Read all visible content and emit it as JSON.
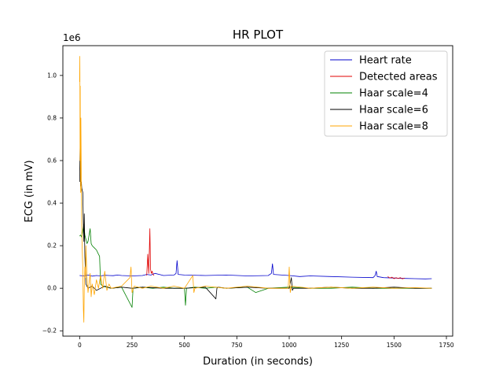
{
  "chart_data": {
    "type": "line",
    "title": "HR PLOT",
    "xlabel": "Duration (in seconds)",
    "ylabel": "ECG (in mV)",
    "y_offset_label": "1e6",
    "xlim": [
      -80,
      1780
    ],
    "ylim": [
      -0.225,
      1.14
    ],
    "x_ticks": [
      0,
      250,
      500,
      750,
      1000,
      1250,
      1500,
      1750
    ],
    "x_tick_labels": [
      "0",
      "250",
      "500",
      "750",
      "1000",
      "1250",
      "1500",
      "1750"
    ],
    "y_ticks": [
      -0.2,
      0,
      0.2,
      0.4,
      0.6,
      0.8,
      1.0
    ],
    "y_tick_labels": [
      "−0.2",
      "0.0",
      "0.2",
      "0.4",
      "0.6",
      "0.8",
      "1.0"
    ],
    "grid": false,
    "legend_position": "top-right",
    "series": [
      {
        "name": "Heart rate",
        "color": "#0000cc",
        "x": [
          0,
          20,
          40,
          60,
          80,
          100,
          120,
          140,
          160,
          180,
          200,
          250,
          300,
          320,
          340,
          360,
          380,
          400,
          450,
          460,
          465,
          470,
          500,
          600,
          700,
          800,
          900,
          915,
          920,
          925,
          1000,
          1050,
          1100,
          1200,
          1300,
          1400,
          1410,
          1415,
          1420,
          1450,
          1500,
          1550,
          1600,
          1650,
          1680
        ],
        "y": [
          0.06,
          0.058,
          0.062,
          0.057,
          0.06,
          0.058,
          0.061,
          0.06,
          0.059,
          0.062,
          0.06,
          0.058,
          0.06,
          0.065,
          0.062,
          0.07,
          0.065,
          0.06,
          0.062,
          0.07,
          0.13,
          0.065,
          0.062,
          0.06,
          0.062,
          0.058,
          0.06,
          0.07,
          0.115,
          0.065,
          0.06,
          0.055,
          0.058,
          0.055,
          0.052,
          0.05,
          0.06,
          0.08,
          0.055,
          0.05,
          0.048,
          0.046,
          0.045,
          0.044,
          0.045
        ]
      },
      {
        "name": "Detected areas",
        "color": "#e00000",
        "x": [
          320,
          325,
          330,
          335,
          338,
          342,
          346,
          350,
          355,
          1470,
          1480,
          1490,
          1500,
          1510,
          1520,
          1530,
          1540,
          1550
        ],
        "y": [
          0.06,
          0.16,
          0.07,
          0.28,
          0.09,
          0.07,
          0.08,
          0.065,
          0.06,
          0.055,
          0.048,
          0.052,
          0.045,
          0.05,
          0.046,
          0.05,
          0.044,
          0.048
        ],
        "segments": [
          [
            0,
            9
          ],
          [
            9,
            18
          ]
        ]
      },
      {
        "name": "Haar scale=4",
        "color": "#008000",
        "x": [
          0,
          5,
          10,
          15,
          20,
          25,
          30,
          35,
          40,
          50,
          55,
          60,
          70,
          80,
          90,
          95,
          100,
          110,
          150,
          200,
          250,
          255,
          300,
          350,
          400,
          450,
          500,
          505,
          510,
          550,
          600,
          650,
          700,
          800,
          840,
          900,
          1000,
          1100,
          1200,
          1300,
          1400,
          1500,
          1600,
          1680
        ],
        "y": [
          0.245,
          0.25,
          0.24,
          0.27,
          0.3,
          0.25,
          0.23,
          0.21,
          0.22,
          0.28,
          0.21,
          0.2,
          0.19,
          0.18,
          0.16,
          0.15,
          0.02,
          0.01,
          0.0,
          0.005,
          -0.09,
          0.0,
          0.005,
          0.0,
          0.005,
          0.0,
          0.0,
          -0.08,
          0.0,
          0.005,
          0.0,
          0.005,
          0.0,
          0.005,
          -0.02,
          0.0,
          0.005,
          0.0,
          0.0,
          0.005,
          0.0,
          0.0,
          0.0,
          0.0
        ]
      },
      {
        "name": "Haar scale=6",
        "color": "#000000",
        "x": [
          0,
          2,
          5,
          8,
          10,
          15,
          18,
          20,
          22,
          25,
          30,
          40,
          60,
          80,
          100,
          120,
          150,
          200,
          250,
          300,
          400,
          500,
          600,
          650,
          655,
          660,
          700,
          800,
          900,
          1000,
          1010,
          1015,
          1020,
          1100,
          1200,
          1300,
          1400,
          1500,
          1600,
          1680
        ],
        "y": [
          0.5,
          0.66,
          0.48,
          0.5,
          0.47,
          0.45,
          0.3,
          0.22,
          0.35,
          0.15,
          0.02,
          0.0,
          0.01,
          -0.01,
          0.0,
          0.01,
          0.0,
          0.005,
          0.0,
          0.005,
          0.0,
          0.0,
          0.005,
          -0.05,
          0.0,
          0.005,
          0.0,
          0.005,
          0.0,
          0.0,
          0.05,
          -0.01,
          0.0,
          0.0,
          0.005,
          0.0,
          0.0,
          0.005,
          0.0,
          0.0
        ]
      },
      {
        "name": "Haar scale=8",
        "color": "#ffa500",
        "x": [
          0,
          1,
          2,
          3,
          4,
          6,
          8,
          10,
          12,
          15,
          18,
          20,
          22,
          25,
          28,
          30,
          35,
          40,
          50,
          55,
          60,
          70,
          80,
          90,
          100,
          110,
          120,
          130,
          140,
          150,
          200,
          240,
          245,
          250,
          260,
          300,
          340,
          400,
          450,
          500,
          540,
          545,
          550,
          600,
          700,
          800,
          900,
          995,
          1000,
          1005,
          1010,
          1100,
          1200,
          1300,
          1400,
          1500,
          1600,
          1680
        ],
        "y": [
          0.97,
          1.09,
          0.6,
          0.95,
          0.45,
          0.8,
          0.5,
          0.3,
          0.2,
          0.1,
          -0.1,
          -0.16,
          0.0,
          0.1,
          0.05,
          0.2,
          0.05,
          -0.02,
          0.07,
          -0.04,
          0.02,
          -0.03,
          0.04,
          0.0,
          0.06,
          0.0,
          0.08,
          -0.01,
          0.02,
          0.0,
          0.01,
          0.05,
          0.1,
          -0.02,
          0.01,
          0.0,
          0.01,
          0.0,
          0.01,
          0.0,
          0.06,
          -0.02,
          0.0,
          0.01,
          0.0,
          0.01,
          0.0,
          0.0,
          0.1,
          -0.02,
          0.01,
          0.0,
          0.005,
          0.0,
          0.005,
          0.0,
          0.003,
          0.0
        ]
      }
    ]
  }
}
